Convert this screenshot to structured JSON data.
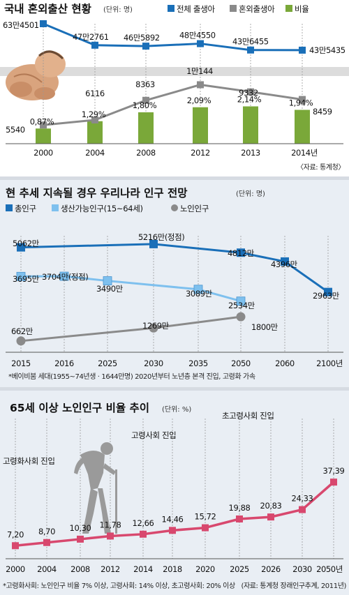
{
  "chart_data": [
    {
      "type": "line+bar",
      "title": "국내 혼외출산 현황",
      "unit": "(단위: 명)",
      "legend": [
        "전체 출생아",
        "혼외출생아",
        "비율"
      ],
      "categories": [
        "2000",
        "2004",
        "2008",
        "2012",
        "2013",
        "2014년"
      ],
      "series": [
        {
          "name": "전체 출생아",
          "color": "#1a6fb8",
          "values": [
            634501,
            472761,
            465892,
            484550,
            436455,
            435435
          ],
          "labels": [
            "63만4501",
            "47만2761",
            "46만5892",
            "48만4550",
            "43만6455",
            "43만5435"
          ]
        },
        {
          "name": "혼외출생아",
          "color": "#8a8a8a",
          "values": [
            5540,
            6116,
            8363,
            10144,
            9332,
            8459
          ],
          "labels": [
            "5540",
            "6116",
            "8363",
            "1만144",
            "9332",
            "8459"
          ]
        },
        {
          "name": "비율",
          "color": "#7aa839",
          "values": [
            0.87,
            1.29,
            1.8,
            2.09,
            2.14,
            1.94
          ],
          "labels": [
            "0,87%",
            "1,29%",
            "1,80%",
            "2,09%",
            "2,14%",
            "1,94%"
          ]
        }
      ],
      "source": "〈자료: 통계청〉"
    },
    {
      "type": "line",
      "title": "현 추세 지속될 경우 우리나라 인구 전망",
      "unit": "(단위: 명)",
      "legend": [
        "총인구",
        "생산가능인구(15~64세)",
        "노인인구"
      ],
      "categories": [
        "2015",
        "2016",
        "2025",
        "2030",
        "2035",
        "2050",
        "2060",
        "2100년"
      ],
      "series": [
        {
          "name": "총인구",
          "color": "#1a6fb8",
          "points": [
            [
              0,
              5062
            ],
            [
              3,
              5216
            ],
            [
              5,
              4812
            ],
            [
              6,
              4396
            ],
            [
              7,
              2963
            ]
          ],
          "labels": [
            "5062만",
            "5216만(정점)",
            "4812만",
            "4396만",
            "2963만"
          ]
        },
        {
          "name": "생산가능인구(15~64세)",
          "color": "#7ec0ee",
          "points": [
            [
              0,
              3695
            ],
            [
              1,
              3704
            ],
            [
              2,
              3490
            ],
            [
              4,
              3089
            ],
            [
              5,
              2534
            ]
          ],
          "labels": [
            "3695만",
            "3704만(정점)",
            "3490만",
            "3089만",
            "2534만"
          ]
        },
        {
          "name": "노인인구",
          "color": "#8a8a8a",
          "points": [
            [
              0,
              662
            ],
            [
              3,
              1269
            ],
            [
              5,
              1800
            ]
          ],
          "labels": [
            "662만",
            "1269만",
            "1800만"
          ]
        }
      ],
      "note": "*베이비붐 세대(1955~74년생 · 1644만명) 2020년부터 노년층 본격 진입, 고령화 가속"
    },
    {
      "type": "line",
      "title": "65세 이상 노인인구 비율 추이",
      "unit": "(단위: %)",
      "categories": [
        "2000",
        "2004",
        "2008",
        "2012",
        "2014",
        "2018",
        "2020",
        "2025",
        "2026",
        "2030",
        "2050년"
      ],
      "series": [
        {
          "name": "",
          "color": "#d8486e",
          "values": [
            7.2,
            8.7,
            10.3,
            11.78,
            12.66,
            14.46,
            15.72,
            19.88,
            20.83,
            24.33,
            37.39
          ],
          "labels": [
            "7,20",
            "8,70",
            "10,30",
            "11,78",
            "12,66",
            "14,46",
            "15,72",
            "19,88",
            "20,83",
            "24,33",
            "37,39"
          ]
        }
      ],
      "annotations": [
        "고령화사회 진입",
        "고령사회 진입",
        "초고령사회 진입"
      ],
      "note": "*고령화사회: 노인인구 비율 7% 이상, 고령사회: 14% 이상, 초고령사회: 20% 이상",
      "source": "(자료: 통계청 장래인구추계, 2011년)"
    }
  ]
}
